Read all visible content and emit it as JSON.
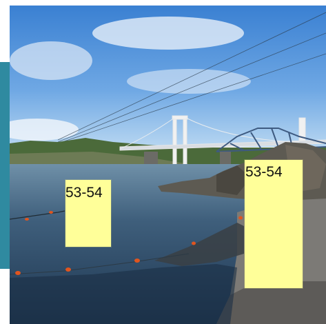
{
  "annotations": [
    {
      "label": "53-54"
    },
    {
      "label": "53-54"
    }
  ],
  "scene": {
    "colors": {
      "sky_top": "#3f86d6",
      "sky_bottom": "#a8cdee",
      "water": "#2f4c68",
      "bridge": "#f2f2f2",
      "net_floats": "#e0551f",
      "sticky_note": "#ffff99",
      "side_bar": "#2f8aa0"
    }
  }
}
